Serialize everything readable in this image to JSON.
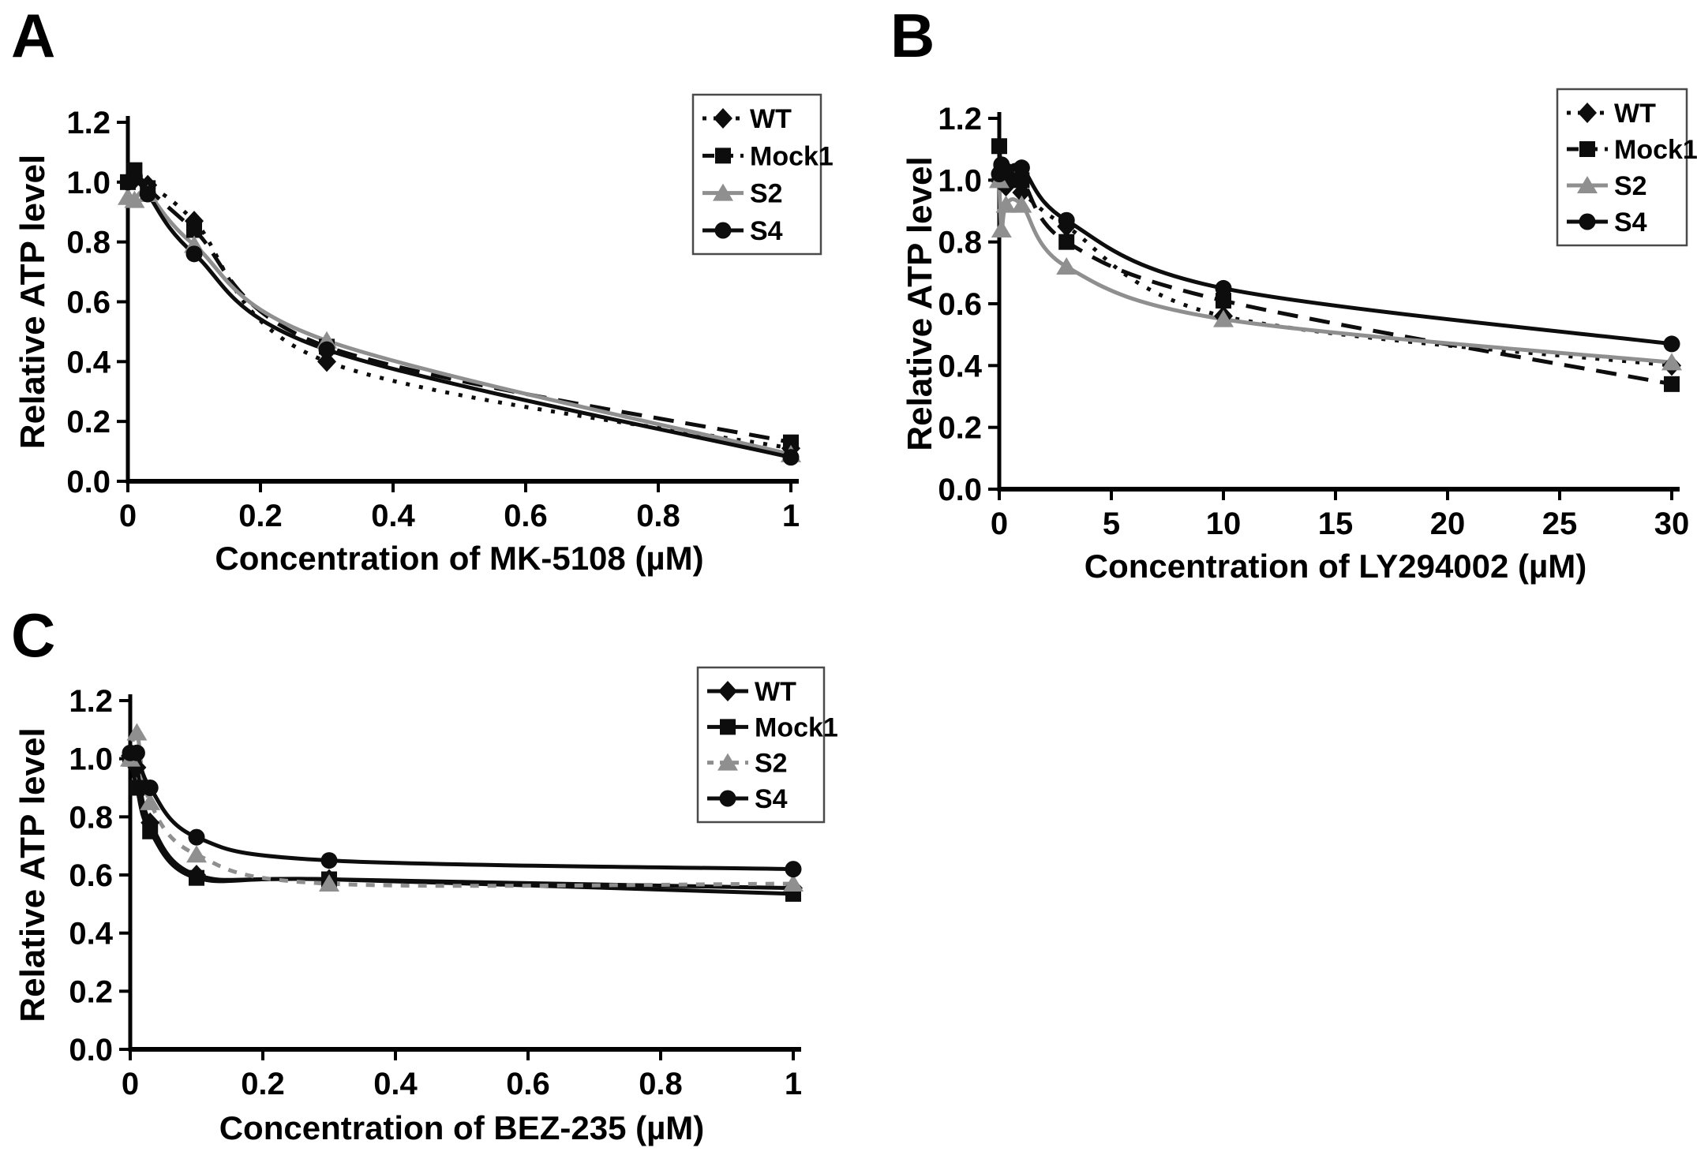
{
  "page": {
    "background_color": "#ffffff"
  },
  "colors": {
    "black": "#0d0d0d",
    "gray": "#8f8f8f",
    "legend_border": "#4a4a4a"
  },
  "chart_data": [
    {
      "panel": "A",
      "type": "line",
      "title": "",
      "xlabel": "Concentration of MK-5108 (µM)",
      "ylabel": "Relative ATP level",
      "xlim": [
        0,
        1
      ],
      "ylim": [
        0,
        1.2
      ],
      "xticks": {
        "values": [
          0,
          0.2,
          0.4,
          0.6,
          0.8,
          1
        ],
        "labels": [
          "0",
          "0.2",
          "0.4",
          "0.6",
          "0.8",
          "1"
        ]
      },
      "yticks": {
        "values": [
          0,
          0.2,
          0.4,
          0.6,
          0.8,
          1.0,
          1.2
        ],
        "labels": [
          "0.0",
          "0.2",
          "0.4",
          "0.6",
          "0.8",
          "1.0",
          "1.2"
        ]
      },
      "x": [
        0,
        0.01,
        0.03,
        0.1,
        0.3,
        1
      ],
      "series": [
        {
          "name": "WT",
          "color": "#0d0d0d",
          "line": "dotted",
          "marker": "diamond",
          "values": [
            1.0,
            1.01,
            0.99,
            0.87,
            0.4,
            0.11
          ]
        },
        {
          "name": "Mock1",
          "color": "#0d0d0d",
          "line": "dashed",
          "marker": "square",
          "values": [
            1.0,
            1.04,
            0.98,
            0.84,
            0.45,
            0.13
          ]
        },
        {
          "name": "S2",
          "color": "#8f8f8f",
          "line": "solid",
          "marker": "triangle",
          "values": [
            0.95,
            0.94,
            0.96,
            0.79,
            0.47,
            0.09
          ]
        },
        {
          "name": "S4",
          "color": "#0d0d0d",
          "line": "solid",
          "marker": "circle",
          "values": [
            1.0,
            1.02,
            0.96,
            0.76,
            0.44,
            0.08
          ]
        }
      ],
      "legend": {
        "entries": [
          "WT",
          "Mock1",
          "S2",
          "S4"
        ],
        "position": "top-right",
        "border": true
      }
    },
    {
      "panel": "B",
      "type": "line",
      "title": "",
      "xlabel": "Concentration of LY294002 (µM)",
      "ylabel": "Relative ATP level",
      "xlim": [
        0,
        30
      ],
      "ylim": [
        0,
        1.2
      ],
      "xticks": {
        "values": [
          0,
          5,
          10,
          15,
          20,
          25,
          30
        ],
        "labels": [
          "0",
          "5",
          "10",
          "15",
          "20",
          "25",
          "30"
        ]
      },
      "yticks": {
        "values": [
          0,
          0.2,
          0.4,
          0.6,
          0.8,
          1.0,
          1.2
        ],
        "labels": [
          "0.0",
          "0.2",
          "0.4",
          "0.6",
          "0.8",
          "1.0",
          "1.2"
        ]
      },
      "x": [
        0,
        0.1,
        0.3,
        1,
        3,
        10,
        30
      ],
      "series": [
        {
          "name": "WT",
          "color": "#0d0d0d",
          "line": "dotted",
          "marker": "diamond",
          "values": [
            1.0,
            1.03,
            0.98,
            0.96,
            0.85,
            0.56,
            0.4
          ]
        },
        {
          "name": "Mock1",
          "color": "#0d0d0d",
          "line": "dashed",
          "marker": "square",
          "values": [
            1.11,
            1.03,
            1.0,
            1.0,
            0.8,
            0.61,
            0.34
          ]
        },
        {
          "name": "S2",
          "color": "#8f8f8f",
          "line": "solid",
          "marker": "triangle",
          "values": [
            1.0,
            0.84,
            0.92,
            0.92,
            0.72,
            0.55,
            0.41
          ]
        },
        {
          "name": "S4",
          "color": "#0d0d0d",
          "line": "solid",
          "marker": "circle",
          "values": [
            1.02,
            1.05,
            1.03,
            1.04,
            0.87,
            0.65,
            0.47
          ]
        }
      ],
      "legend": {
        "entries": [
          "WT",
          "Mock1",
          "S2",
          "S4"
        ],
        "position": "top-right",
        "border": true
      }
    },
    {
      "panel": "C",
      "type": "line",
      "title": "",
      "xlabel": "Concentration of BEZ-235 (µM)",
      "ylabel": "Relative ATP level",
      "xlim": [
        0,
        1
      ],
      "ylim": [
        0,
        1.2
      ],
      "xticks": {
        "values": [
          0,
          0.2,
          0.4,
          0.6,
          0.8,
          1
        ],
        "labels": [
          "0",
          "0.2",
          "0.4",
          "0.6",
          "0.8",
          "1"
        ]
      },
      "yticks": {
        "values": [
          0,
          0.2,
          0.4,
          0.6,
          0.8,
          1.0,
          1.2
        ],
        "labels": [
          "0.0",
          "0.2",
          "0.4",
          "0.6",
          "0.8",
          "1.0",
          "1.2"
        ]
      },
      "x": [
        0,
        0.01,
        0.03,
        0.1,
        0.3,
        1
      ],
      "series": [
        {
          "name": "WT",
          "color": "#0d0d0d",
          "line": "solid",
          "marker": "diamond",
          "values": [
            1.01,
            0.97,
            0.78,
            0.6,
            0.585,
            0.555
          ]
        },
        {
          "name": "Mock1",
          "color": "#0d0d0d",
          "line": "solid",
          "marker": "square",
          "values": [
            1.0,
            0.9,
            0.75,
            0.59,
            0.585,
            0.535
          ]
        },
        {
          "name": "S2",
          "color": "#8f8f8f",
          "line": "dashed-short",
          "marker": "triangle",
          "values": [
            1.0,
            1.09,
            0.85,
            0.67,
            0.57,
            0.57
          ]
        },
        {
          "name": "S4",
          "color": "#0d0d0d",
          "line": "solid",
          "marker": "circle",
          "values": [
            1.02,
            1.02,
            0.9,
            0.73,
            0.65,
            0.62
          ]
        }
      ],
      "legend": {
        "entries": [
          "WT",
          "Mock1",
          "S2",
          "S4"
        ],
        "position": "top-right",
        "border": true
      }
    }
  ]
}
